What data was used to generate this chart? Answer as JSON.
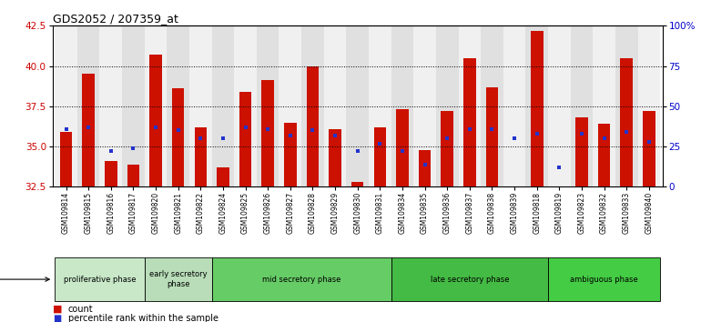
{
  "title": "GDS2052 / 207359_at",
  "samples": [
    "GSM109814",
    "GSM109815",
    "GSM109816",
    "GSM109817",
    "GSM109820",
    "GSM109821",
    "GSM109822",
    "GSM109824",
    "GSM109825",
    "GSM109826",
    "GSM109827",
    "GSM109828",
    "GSM109829",
    "GSM109830",
    "GSM109831",
    "GSM109834",
    "GSM109835",
    "GSM109836",
    "GSM109837",
    "GSM109838",
    "GSM109839",
    "GSM109818",
    "GSM109819",
    "GSM109823",
    "GSM109832",
    "GSM109833",
    "GSM109840"
  ],
  "red_values": [
    35.9,
    39.5,
    34.1,
    33.9,
    40.7,
    38.6,
    36.2,
    33.7,
    38.4,
    39.1,
    36.5,
    40.0,
    36.1,
    32.8,
    36.2,
    37.3,
    34.8,
    37.2,
    40.5,
    38.7,
    32.5,
    42.2,
    32.3,
    36.8,
    36.4,
    40.5,
    37.2
  ],
  "blue_pct": [
    36,
    37,
    22,
    24,
    37,
    35,
    30,
    30,
    37,
    36,
    32,
    35,
    32,
    22,
    27,
    22,
    14,
    30,
    36,
    36,
    30,
    33,
    12,
    33,
    30,
    34,
    28
  ],
  "ylim_left": [
    32.5,
    42.5
  ],
  "yticks_left": [
    32.5,
    35.0,
    37.5,
    40.0,
    42.5
  ],
  "yticks_right": [
    0,
    25,
    50,
    75,
    100
  ],
  "ytick_right_labels": [
    "0",
    "25",
    "50",
    "75",
    "100%"
  ],
  "phases": [
    {
      "label": "proliferative phase",
      "start": 0,
      "end": 4,
      "color": "#c8e8c8"
    },
    {
      "label": "early secretory\nphase",
      "start": 4,
      "end": 7,
      "color": "#b8ddb8"
    },
    {
      "label": "mid secretory phase",
      "start": 7,
      "end": 15,
      "color": "#66cc66"
    },
    {
      "label": "late secretory phase",
      "start": 15,
      "end": 22,
      "color": "#44bb44"
    },
    {
      "label": "ambiguous phase",
      "start": 22,
      "end": 27,
      "color": "#44cc44"
    }
  ],
  "bar_color": "#cc1100",
  "blue_color": "#2233cc",
  "bar_width": 0.55,
  "tick_color_left": "#cc0000",
  "tick_color_right": "#0000cc",
  "bg_color_even": "#f0f0f0",
  "bg_color_odd": "#e0e0e0"
}
